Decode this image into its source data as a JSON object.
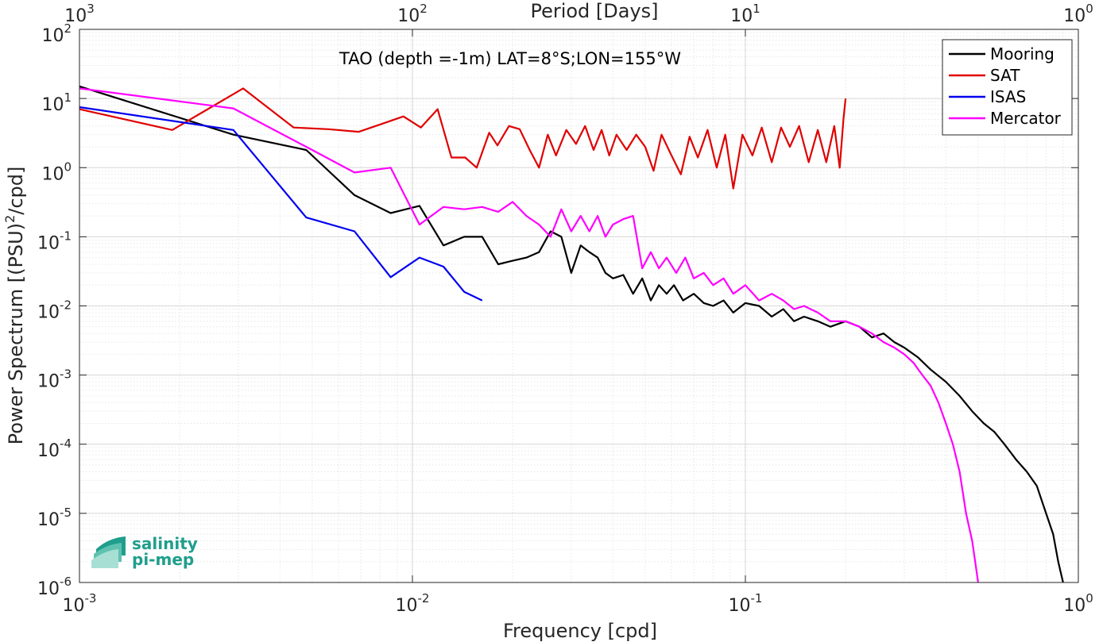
{
  "chart_data": {
    "type": "line",
    "title": "TAO (depth =-1m) LAT=8°S;LON=155°W",
    "xlabel": "Frequency [cpd]",
    "ylabel_main": "Power Spectrum [(PSU)",
    "ylabel_sup": "2",
    "ylabel_tail": "/cpd]",
    "top_xlabel": "Period [Days]",
    "xscale": "log",
    "yscale": "log",
    "xlim": [
      0.001,
      1
    ],
    "ylim": [
      1e-06,
      100
    ],
    "grid": true,
    "legend_position": "top-right",
    "x_ticks": [
      {
        "value": 0.001,
        "base": "10",
        "exp": "-3"
      },
      {
        "value": 0.01,
        "base": "10",
        "exp": "-2"
      },
      {
        "value": 0.1,
        "base": "10",
        "exp": "-1"
      },
      {
        "value": 1,
        "base": "10",
        "exp": "0"
      }
    ],
    "y_ticks": [
      {
        "value": 1e-06,
        "base": "10",
        "exp": "-6"
      },
      {
        "value": 1e-05,
        "base": "10",
        "exp": "-5"
      },
      {
        "value": 0.0001,
        "base": "10",
        "exp": "-4"
      },
      {
        "value": 0.001,
        "base": "10",
        "exp": "-3"
      },
      {
        "value": 0.01,
        "base": "10",
        "exp": "-2"
      },
      {
        "value": 0.1,
        "base": "10",
        "exp": "-1"
      },
      {
        "value": 1,
        "base": "10",
        "exp": "0"
      },
      {
        "value": 10,
        "base": "10",
        "exp": "1"
      },
      {
        "value": 100,
        "base": "10",
        "exp": "2"
      }
    ],
    "top_ticks": [
      {
        "value": 0.001,
        "base": "10",
        "exp": "3"
      },
      {
        "value": 0.01,
        "base": "10",
        "exp": "2"
      },
      {
        "value": 0.1,
        "base": "10",
        "exp": "1"
      },
      {
        "value": 1,
        "base": "10",
        "exp": "0"
      }
    ],
    "series": [
      {
        "name": "Mooring",
        "color": "#000000",
        "x": [
          0.001,
          0.0029,
          0.0048,
          0.0067,
          0.0086,
          0.0105,
          0.0124,
          0.0143,
          0.0162,
          0.0181,
          0.02,
          0.022,
          0.024,
          0.026,
          0.028,
          0.03,
          0.032,
          0.034,
          0.036,
          0.038,
          0.04,
          0.043,
          0.046,
          0.049,
          0.052,
          0.055,
          0.058,
          0.061,
          0.065,
          0.07,
          0.075,
          0.08,
          0.086,
          0.092,
          0.1,
          0.11,
          0.12,
          0.13,
          0.14,
          0.15,
          0.165,
          0.18,
          0.2,
          0.22,
          0.24,
          0.26,
          0.28,
          0.3,
          0.33,
          0.36,
          0.4,
          0.44,
          0.48,
          0.52,
          0.56,
          0.6,
          0.65,
          0.7,
          0.75,
          0.8,
          0.84,
          0.87,
          0.9
        ],
        "y": [
          15,
          3.0,
          1.8,
          0.4,
          0.22,
          0.28,
          0.075,
          0.1,
          0.1,
          0.04,
          0.045,
          0.05,
          0.06,
          0.12,
          0.1,
          0.03,
          0.075,
          0.06,
          0.05,
          0.03,
          0.025,
          0.028,
          0.015,
          0.025,
          0.012,
          0.02,
          0.015,
          0.02,
          0.012,
          0.015,
          0.011,
          0.01,
          0.012,
          0.008,
          0.011,
          0.01,
          0.007,
          0.009,
          0.006,
          0.007,
          0.006,
          0.005,
          0.006,
          0.005,
          0.0035,
          0.004,
          0.003,
          0.0025,
          0.0018,
          0.0012,
          0.0008,
          0.0005,
          0.0003,
          0.0002,
          0.00015,
          0.0001,
          6e-05,
          4e-05,
          2.5e-05,
          1e-05,
          5e-06,
          2e-06,
          1e-06
        ]
      },
      {
        "name": "SAT",
        "color": "#e00000",
        "x": [
          0.001,
          0.0019,
          0.0031,
          0.0044,
          0.0056,
          0.0069,
          0.0081,
          0.0094,
          0.0106,
          0.0119,
          0.0131,
          0.0144,
          0.0156,
          0.017,
          0.018,
          0.0195,
          0.021,
          0.0225,
          0.024,
          0.0255,
          0.027,
          0.029,
          0.031,
          0.033,
          0.035,
          0.037,
          0.039,
          0.041,
          0.044,
          0.047,
          0.05,
          0.053,
          0.056,
          0.06,
          0.064,
          0.068,
          0.072,
          0.077,
          0.082,
          0.087,
          0.092,
          0.098,
          0.105,
          0.112,
          0.12,
          0.128,
          0.136,
          0.145,
          0.155,
          0.165,
          0.175,
          0.185,
          0.192,
          0.197,
          0.2
        ],
        "y": [
          7.0,
          3.5,
          14.0,
          3.8,
          3.6,
          3.3,
          4.3,
          5.5,
          3.8,
          7.0,
          1.4,
          1.4,
          1.0,
          3.2,
          2.1,
          4.0,
          3.6,
          1.8,
          1.0,
          3.0,
          1.5,
          3.5,
          2.2,
          4.0,
          1.8,
          3.5,
          1.5,
          3.0,
          1.8,
          3.0,
          2.0,
          0.9,
          3.0,
          1.5,
          0.8,
          2.8,
          1.4,
          3.5,
          1.0,
          3.0,
          0.5,
          3.0,
          1.5,
          3.8,
          1.2,
          3.8,
          2.0,
          4.0,
          1.2,
          3.5,
          1.2,
          4.0,
          1.0,
          5.0,
          10.0
        ]
      },
      {
        "name": "ISAS",
        "color": "#0000ee",
        "x": [
          0.001,
          0.0029,
          0.0048,
          0.0067,
          0.0086,
          0.0105,
          0.0124,
          0.0143,
          0.0162
        ],
        "y": [
          7.5,
          3.5,
          0.19,
          0.12,
          0.026,
          0.05,
          0.037,
          0.016,
          0.012
        ]
      },
      {
        "name": "Mercator",
        "color": "#ff00ff",
        "x": [
          0.001,
          0.0029,
          0.0048,
          0.0067,
          0.0086,
          0.0105,
          0.0124,
          0.0143,
          0.0162,
          0.0181,
          0.02,
          0.022,
          0.024,
          0.026,
          0.028,
          0.03,
          0.032,
          0.034,
          0.036,
          0.038,
          0.04,
          0.043,
          0.046,
          0.049,
          0.052,
          0.055,
          0.058,
          0.062,
          0.066,
          0.07,
          0.075,
          0.08,
          0.086,
          0.092,
          0.1,
          0.11,
          0.12,
          0.13,
          0.14,
          0.15,
          0.165,
          0.18,
          0.2,
          0.22,
          0.24,
          0.26,
          0.28,
          0.3,
          0.32,
          0.34,
          0.36,
          0.38,
          0.4,
          0.42,
          0.44,
          0.46,
          0.48,
          0.49,
          0.5
        ],
        "y": [
          14,
          7.2,
          2.0,
          0.85,
          1.0,
          0.15,
          0.27,
          0.25,
          0.27,
          0.23,
          0.32,
          0.2,
          0.15,
          0.1,
          0.25,
          0.12,
          0.2,
          0.12,
          0.2,
          0.1,
          0.15,
          0.18,
          0.2,
          0.035,
          0.06,
          0.035,
          0.05,
          0.03,
          0.05,
          0.025,
          0.03,
          0.02,
          0.025,
          0.015,
          0.02,
          0.012,
          0.015,
          0.012,
          0.009,
          0.01,
          0.008,
          0.006,
          0.006,
          0.005,
          0.004,
          0.003,
          0.0025,
          0.002,
          0.0015,
          0.001,
          0.0007,
          0.0004,
          0.0002,
          0.0001,
          4e-05,
          1e-05,
          4e-06,
          2e-06,
          1e-06
        ]
      }
    ]
  },
  "logo": {
    "line1": "salinity",
    "line2": "pi-mep"
  }
}
